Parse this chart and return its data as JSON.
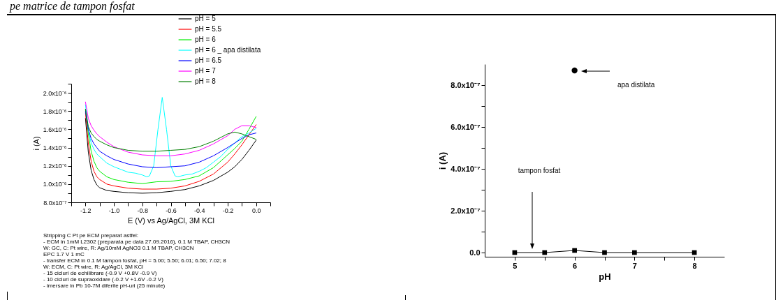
{
  "chart_data": [
    {
      "type": "line",
      "title": "pe matrice de tampon fosfat",
      "xlabel": "E (V) vs Ag/AgCl, 3M KCl",
      "ylabel": "i (A)",
      "legend": "top right",
      "x": [
        -1.2,
        -1.18,
        -1.16,
        -1.14,
        -1.12,
        -1.1,
        -1.05,
        -1.0,
        -0.9,
        -0.8,
        -0.7,
        -0.6,
        -0.5,
        -0.4,
        -0.3,
        -0.2,
        -0.15,
        -0.1,
        -0.05,
        0.0
      ],
      "xlim": [
        -1.3,
        0.1
      ],
      "xticks": [
        {
          "value": -1.3,
          "label": null
        },
        -1.2,
        {
          "value": -1.1,
          "label": null
        },
        {
          "value": -1.0,
          "label": "-1.0"
        },
        {
          "value": -0.9,
          "label": null
        },
        -0.8,
        {
          "value": -0.7,
          "label": null
        },
        -0.6,
        {
          "value": -0.5,
          "label": null
        },
        -0.4,
        {
          "value": -0.3,
          "label": null
        },
        -0.2,
        {
          "value": -0.1,
          "label": null
        },
        {
          "value": 0,
          "label": "0.0"
        },
        {
          "value": 0.1,
          "label": null
        }
      ],
      "ylim": [
        8e-07,
        2.1e-06
      ],
      "yticks": [
        {
          "value": 8e-07,
          "label": "8.0x10⁻⁷"
        },
        {
          "value": 9e-07,
          "label": null
        },
        {
          "value": 1e-06,
          "label": "1.0x10⁻⁶"
        },
        {
          "value": 1.1e-06,
          "label": null
        },
        {
          "value": 1.2e-06,
          "label": "1.2x10⁻⁶"
        },
        {
          "value": 1.3e-06,
          "label": null
        },
        {
          "value": 1.4e-06,
          "label": "1.4x10⁻⁶"
        },
        {
          "value": 1.5e-06,
          "label": null
        },
        {
          "value": 1.6e-06,
          "label": "1.6x10⁻⁶"
        },
        {
          "value": 1.7e-06,
          "label": null
        },
        {
          "value": 1.8e-06,
          "label": "1.8x10⁻⁶"
        },
        {
          "value": 1.9e-06,
          "label": null
        },
        {
          "value": 2e-06,
          "label": "2.0x10⁻⁶"
        },
        {
          "value": 2.1e-06,
          "label": null
        }
      ],
      "series": [
        {
          "name": "pH = 5",
          "color": "#000000",
          "values": [
            1.72e-06,
            1.35e-06,
            1.15e-06,
            1.05e-06,
            9.9e-07,
            9.6e-07,
            9.3e-07,
            9.2e-07,
            9.05e-07,
            9e-07,
            9.05e-07,
            9.2e-07,
            9.4e-07,
            9.8e-07,
            1.04e-06,
            1.13e-06,
            1.19e-06,
            1.27e-06,
            1.37e-06,
            1.48e-06
          ]
        },
        {
          "name": "pH = 5.5",
          "color": "#ff0000",
          "values": [
            1.78e-06,
            1.45e-06,
            1.25e-06,
            1.14e-06,
            1.08e-06,
            1.05e-06,
            1e-06,
            9.8e-07,
            9.55e-07,
            9.45e-07,
            9.45e-07,
            9.55e-07,
            9.8e-07,
            1.03e-06,
            1.11e-06,
            1.24e-06,
            1.33e-06,
            1.43e-06,
            1.54e-06,
            1.65e-06
          ]
        },
        {
          "name": "pH = 6",
          "color": "#00ee00",
          "values": [
            1.82e-06,
            1.55e-06,
            1.36e-06,
            1.25e-06,
            1.18e-06,
            1.14e-06,
            1.08e-06,
            1.05e-06,
            1.02e-06,
            1.005e-06,
            1.025e-06,
            1.03e-06,
            1.05e-06,
            1.09e-06,
            1.18e-06,
            1.32e-06,
            1.39e-06,
            1.47e-06,
            1.6e-06,
            1.74e-06
          ]
        },
        {
          "name": "pH = 6 _ apa distilata",
          "color": "#00ffff",
          "x": [
            -1.2,
            -1.18,
            -1.16,
            -1.14,
            -1.12,
            -1.1,
            -1.05,
            -1.0,
            -0.95,
            -0.9,
            -0.85,
            -0.8,
            -0.77,
            -0.75,
            -0.72,
            -0.69,
            -0.66,
            -0.63,
            -0.6,
            -0.57,
            -0.55,
            -0.5,
            -0.45,
            -0.4,
            -0.35,
            -0.3,
            -0.25,
            -0.2,
            -0.15,
            -0.1,
            -0.05,
            0.0
          ],
          "values": [
            1.87e-06,
            1.6e-06,
            1.45e-06,
            1.38e-06,
            1.33e-06,
            1.3e-06,
            1.23e-06,
            1.19e-06,
            1.16e-06,
            1.13e-06,
            1.12e-06,
            1.1e-06,
            1.08e-06,
            1.09e-06,
            1.2e-06,
            1.6e-06,
            1.95e-06,
            1.6e-06,
            1.2e-06,
            1.09e-06,
            1.08e-06,
            1.1e-06,
            1.11e-06,
            1.14e-06,
            1.18e-06,
            1.24e-06,
            1.3e-06,
            1.38e-06,
            1.45e-06,
            1.52e-06,
            1.56e-06,
            1.61e-06
          ]
        },
        {
          "name": "pH = 6.5",
          "color": "#0000ff",
          "values": [
            1.8e-06,
            1.6e-06,
            1.5e-06,
            1.44e-06,
            1.4e-06,
            1.36e-06,
            1.31e-06,
            1.27e-06,
            1.22e-06,
            1.19e-06,
            1.18e-06,
            1.19e-06,
            1.2e-06,
            1.24e-06,
            1.31e-06,
            1.4e-06,
            1.45e-06,
            1.5e-06,
            1.54e-06,
            1.56e-06
          ]
        },
        {
          "name": "pH = 7",
          "color": "#ff00ff",
          "values": [
            1.9e-06,
            1.72e-06,
            1.64e-06,
            1.59e-06,
            1.55e-06,
            1.52e-06,
            1.46e-06,
            1.41e-06,
            1.35e-06,
            1.32e-06,
            1.31e-06,
            1.31e-06,
            1.33e-06,
            1.37e-06,
            1.44e-06,
            1.53e-06,
            1.6e-06,
            1.64e-06,
            1.64e-06,
            1.62e-06
          ]
        },
        {
          "name": "pH = 8",
          "color": "#007f00",
          "values": [
            1.82e-06,
            1.63e-06,
            1.56e-06,
            1.52e-06,
            1.49e-06,
            1.47e-06,
            1.43e-06,
            1.4e-06,
            1.37e-06,
            1.36e-06,
            1.36e-06,
            1.37e-06,
            1.38e-06,
            1.41e-06,
            1.47e-06,
            1.55e-06,
            1.57e-06,
            1.55e-06,
            1.52e-06,
            1.49e-06
          ]
        }
      ],
      "annotations": [
        "Stripping C Pt pe ECM preparat astfel:",
        "- ECM in 1mM L2302 (preparata pe data 27.09.2016), 0.1 M TBAP, CH3CN",
        "W: GC, C: Pt wire, R: Ag/10mM AgNO3 0.1 M TBAP, CH3CN",
        "EPC 1.7 V 1 mC",
        "- transfer ECM in 0.1 M tampon fosfat,  pH = 5.00; 5.50; 6.01; 6.50; 7.02; 8",
        "W: ECM, C: Pt wire, R: Ag/AgCl, 3M KCl",
        "- 15 cicluri de echilibrare (-0.9 V +0.8V -0.9 V)",
        "- 10 cicluri de supraoxidare (-0.2 V +1.6V -0.2 V)",
        "- imersare in Pb 10-7M diferite pH-uri (25 minute)"
      ]
    },
    {
      "type": "line",
      "xlabel": "pH",
      "ylabel": "i (A)",
      "xlim": [
        4.5,
        8.5
      ],
      "xticks": [
        5,
        {
          "value": 5.5,
          "label": null
        },
        6,
        {
          "value": 6.5,
          "label": null
        },
        7,
        {
          "value": 7.5,
          "label": null
        },
        8
      ],
      "ylim": [
        -2e-08,
        9e-07
      ],
      "yticks": [
        {
          "value": 0,
          "label": "0.0"
        },
        {
          "value": 1e-07,
          "label": null
        },
        {
          "value": 2e-07,
          "label": "2.0x10⁻⁷"
        },
        {
          "value": 3e-07,
          "label": null
        },
        {
          "value": 4e-07,
          "label": "4.0x10⁻⁷"
        },
        {
          "value": 5e-07,
          "label": null
        },
        {
          "value": 6e-07,
          "label": "6.0x10⁻⁷"
        },
        {
          "value": 7e-07,
          "label": null
        },
        {
          "value": 8e-07,
          "label": "8.0x10⁻⁷"
        }
      ],
      "series": [
        {
          "marker": "square",
          "color": "#000000",
          "x": [
            5,
            5.5,
            6,
            6.5,
            7,
            8
          ],
          "values": [
            0,
            0,
            1e-08,
            0,
            0,
            0
          ]
        },
        {
          "type": "scatter",
          "marker": "circle",
          "color": "#000000",
          "x": [
            6
          ],
          "values": [
            8.7e-07
          ]
        }
      ],
      "annotations": [
        "apa distilata",
        "tampon fosfat"
      ]
    }
  ]
}
